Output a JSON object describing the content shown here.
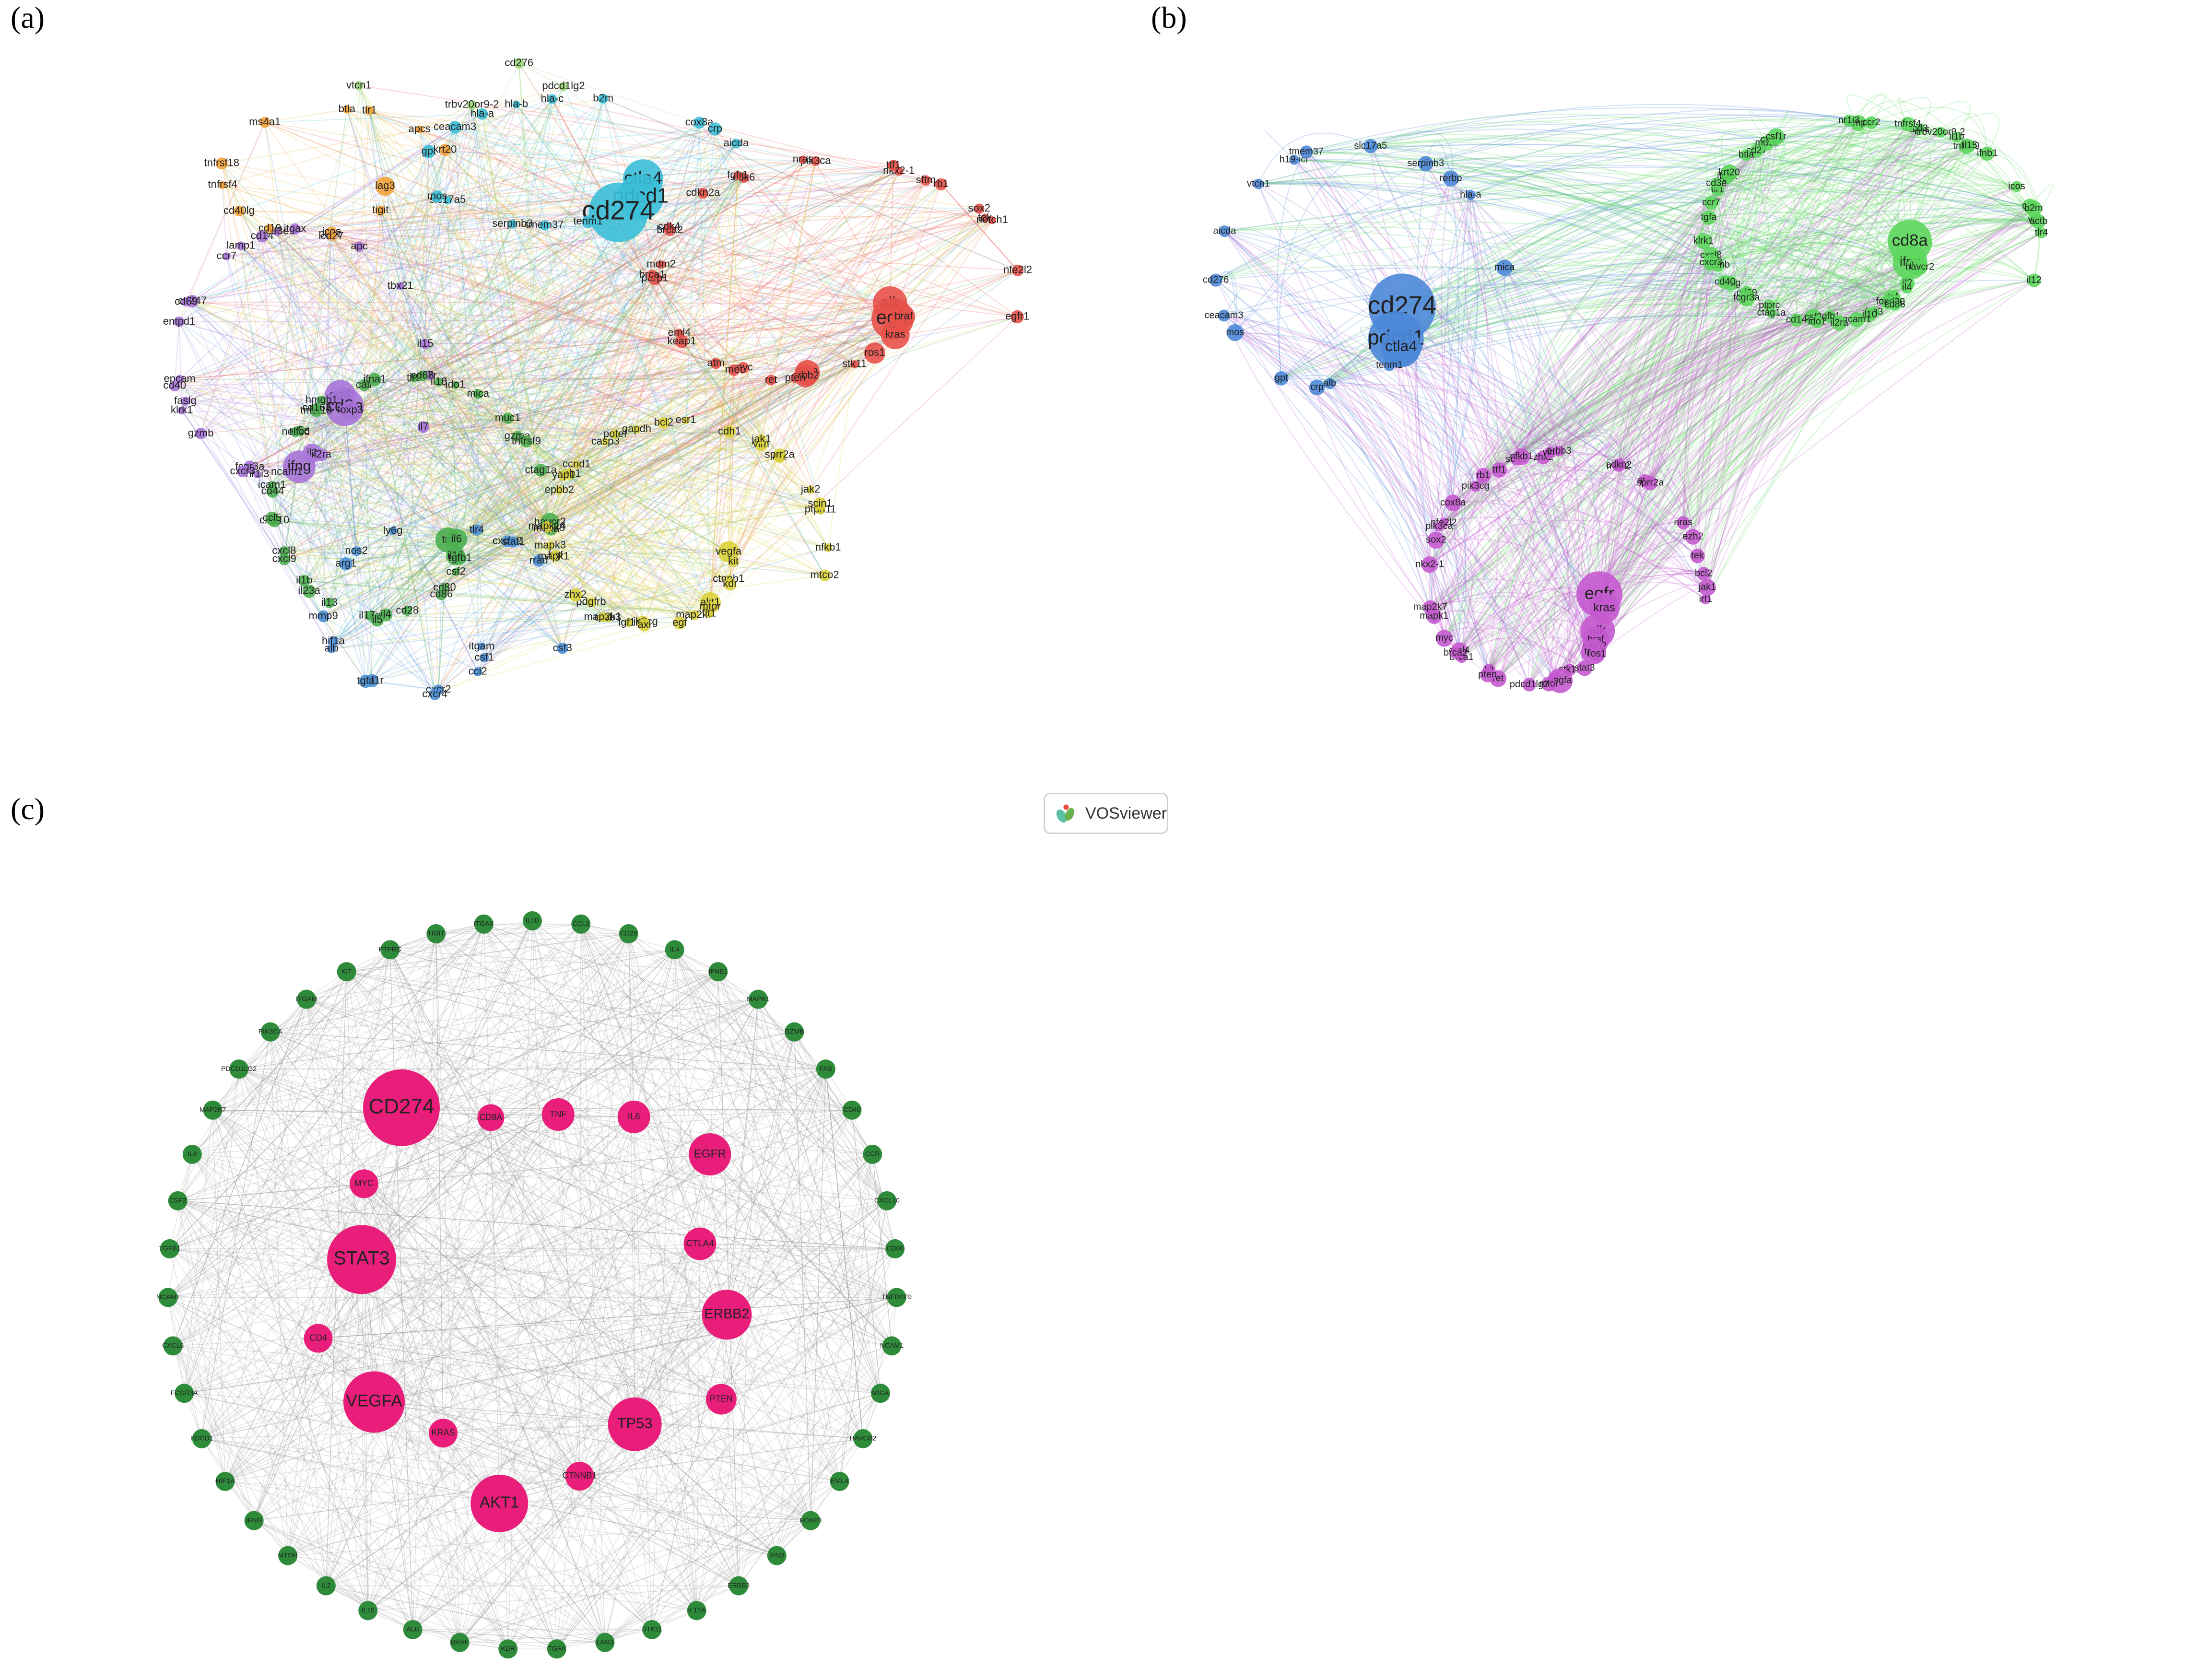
{
  "panel_labels": {
    "a": "(a)",
    "b": "(b)",
    "c": "(c)"
  },
  "badge": {
    "text": "VOSviewer",
    "icon": "vosviewer-logo-icon"
  },
  "colors": {
    "red": "#e8514a",
    "cyan": "#3bbfd8",
    "purple": "#a773d8",
    "green": "#4caf50",
    "orange": "#f2a23a",
    "blue": "#4a90d9",
    "yellow": "#d9d23a",
    "brown": "#b45a4a",
    "lightgreen": "#9cd67a",
    "netB_blue": "#4d88d8",
    "netB_green": "#5cd65c",
    "netB_magenta": "#c55ad0",
    "hub": "#e91e7a",
    "ring": "#2e8b3a",
    "edge": "#9a9a9a"
  },
  "panel_a": {
    "clusters": {
      "red": [
        "alk",
        "egfr",
        "braf",
        "kras",
        "ros1",
        "stk11",
        "tp53",
        "erbb2",
        "pten",
        "myc",
        "ret",
        "met",
        "atm",
        "eml4",
        "keap1",
        "mdm2",
        "parp1",
        "brca1",
        "brca2",
        "cdk4",
        "cdk6",
        "cdkn2a",
        "fgfr1",
        "pik3ca",
        "nras",
        "nkx2-1",
        "sftm",
        "ttf1",
        "rb1",
        "tek",
        "sox2",
        "notch1",
        "nfe2l2",
        "egfr1"
      ],
      "cyan": [
        "ctla4",
        "pdcd1",
        "cd274",
        "tenm1",
        "tmem37",
        "serpinb3",
        "slc17a5",
        "mos",
        "gpt",
        "ceacam3",
        "hla-a",
        "hla-b",
        "hla-c",
        "b2m",
        "cox8a",
        "crp",
        "aicda"
      ],
      "purple": [
        "cd4",
        "cd8a",
        "foxp3",
        "il2",
        "il2ra",
        "ifng",
        "ncam1",
        "fcgr3a",
        "nr1i3",
        "cxcr3",
        "gzmb",
        "faslg",
        "epcam",
        "klrk1",
        "cd40",
        "cd247",
        "entpd1",
        "cd69",
        "ccr7",
        "lamp1",
        "cd14",
        "cd3e",
        "itgax",
        "ptprc",
        "apc",
        "tbx21",
        "il15",
        "il7r",
        "il7"
      ],
      "green": [
        "tnf",
        "il6",
        "il10",
        "tgfb1",
        "csf2",
        "cd80",
        "cd86",
        "cd28",
        "il4",
        "il17a",
        "il5",
        "il13",
        "il1b",
        "il23a",
        "cxcl8",
        "cxcl9",
        "cxcl10",
        "ccl5",
        "cd44",
        "icam1",
        "nt5e",
        "nelfcd",
        "tnfsf10",
        "cd163",
        "calr",
        "hmgb1",
        "ifna1",
        "tlr9",
        "il18",
        "cd68",
        "ido1",
        "gzma",
        "mica",
        "muc1",
        "tnfrsf9",
        "ctag1a",
        "havcr2",
        "il1a"
      ],
      "orange": [
        "lag3",
        "tigit",
        "icos",
        "cd27",
        "cd19",
        "cd40lg",
        "tnfrsf4",
        "tnfrsf18",
        "ms4a1",
        "btla",
        "tlr1",
        "apcs",
        "krt20"
      ],
      "blue": [
        "itgam",
        "csf1",
        "ccl2",
        "cxcr2",
        "cxcr4",
        "csf1r",
        "tgfa",
        "hif1a",
        "alb",
        "mmp9",
        "arg1",
        "nos2",
        "ly6g",
        "tlr4",
        "cxcl12",
        "stat1",
        "rrad",
        "csf3"
      ],
      "yellow": [
        "vegfa",
        "kit",
        "ctnnb1",
        "kdr",
        "akt1",
        "mtor",
        "map2k7",
        "flt1",
        "egf",
        "pik3cg",
        "axl",
        "igf1r",
        "pdgfrb",
        "erbb3",
        "map2k1",
        "zhx2",
        "hgf",
        "mapk1",
        "mapk3",
        "mapk8",
        "mapk14",
        "epbb2",
        "zeb1",
        "ccnd1",
        "yap1",
        "casp3",
        "gapdh",
        "potef",
        "bcl2",
        "cdh1",
        "esr1",
        "vim",
        "irf1",
        "sprr2a",
        "jak1",
        "jak2",
        "ptpn11",
        "scin1",
        "nfkb1",
        "mtco2"
      ],
      "lightgreen": [
        "pdcd1lg2",
        "trbv20or9-2",
        "vtcn1",
        "cd276"
      ]
    }
  },
  "panel_b": {
    "clusters": {
      "blue": [
        "cd274",
        "pdcd1",
        "ctla4",
        "tenm1",
        "alb",
        "crp",
        "gpt",
        "mos",
        "ceacam3",
        "cd276",
        "aicda",
        "vtcn1",
        "h19-icr",
        "tmem37",
        "slc17a5",
        "serpinb3",
        "rerbp",
        "hla-a",
        "mica"
      ],
      "green": [
        "cd8a",
        "ifng",
        "il6",
        "havcr2",
        "il2",
        "il4",
        "tnf",
        "foxp3",
        "cd80",
        "cd86",
        "lag3",
        "il10",
        "tgfb1",
        "ncam1",
        "csf2",
        "il2ra",
        "ido1",
        "ptprc",
        "cd14",
        "cd69",
        "ctag1a",
        "fcgr3a",
        "faslg",
        "gzmb",
        "cd40",
        "cxcl8",
        "cxcr3",
        "tgfa",
        "klrk1",
        "ccr7",
        "tlr1",
        "itgax",
        "krt20",
        "cd3e",
        "cd27",
        "btla",
        "muc1",
        "cxcr2",
        "csf1r",
        "lamp1",
        "ccr2",
        "nr1i3",
        "apcs",
        "cd3",
        "tnfrsf4",
        "tnfrsf9",
        "trbv20or9-2",
        "il15",
        "il1b",
        "icos",
        "ifnb1",
        "calr",
        "vsir",
        "b2m",
        "actb",
        "tlr4",
        "il12"
      ],
      "magenta": [
        "egfr",
        "kras",
        "alk",
        "braf",
        "erbb2",
        "tp53",
        "ros1",
        "stk11",
        "stat3",
        "kdr",
        "vegfa",
        "mtor",
        "pdcd1lg2",
        "kit",
        "ret",
        "pten",
        "eml4",
        "brca1",
        "brca2",
        "myc",
        "mapk1",
        "map2k7",
        "nkx2-1",
        "sox2",
        "nfe2l2",
        "pik3ca",
        "pik3cg",
        "cox8a",
        "ttf1",
        "rb1",
        "zhx2",
        "sclc1",
        "nfkb1",
        "vim",
        "erbb3",
        "msh2",
        "cdkn2",
        "atm",
        "sprr2a",
        "nras",
        "tek",
        "ezh2",
        "bcl2",
        "irf1",
        "jak1"
      ]
    }
  },
  "panel_c": {
    "hubs": [
      "TNF",
      "IL6",
      "EGFR",
      "CTLA4",
      "ERBB2",
      "PTEN",
      "TP53",
      "CTNNB1",
      "AKT1",
      "KRAS",
      "VEGFA",
      "CD4",
      "STAT3",
      "MYC",
      "CD274",
      "CD8A"
    ],
    "ring": [
      "IL1B",
      "CCL2",
      "CD28",
      "IL4",
      "IFNB1",
      "MAPK1",
      "GZMB",
      "FAS",
      "CD40",
      "CCR",
      "CXCL10",
      "CD80",
      "TNFRSF9",
      "NCAM1",
      "MICA",
      "HAVCR2",
      "EML4",
      "FOXP3",
      "IFNB",
      "ERBB3",
      "IL17A",
      "STK11",
      "LAG3",
      "TGFA",
      "KDR",
      "BRAF",
      "ALB",
      "IL10",
      "IL2",
      "MTOR",
      "IFNG",
      "HIF1A",
      "PDCD1",
      "FCGR3A",
      "CXCL8",
      "NCAM1",
      "TGFB1",
      "CSF2",
      "IL4",
      "MAP2K7",
      "PDCD1LG2",
      "PIK3CA",
      "ITGAM",
      "KIT",
      "PTPRC",
      "TIGIT",
      "ITGAX"
    ]
  }
}
